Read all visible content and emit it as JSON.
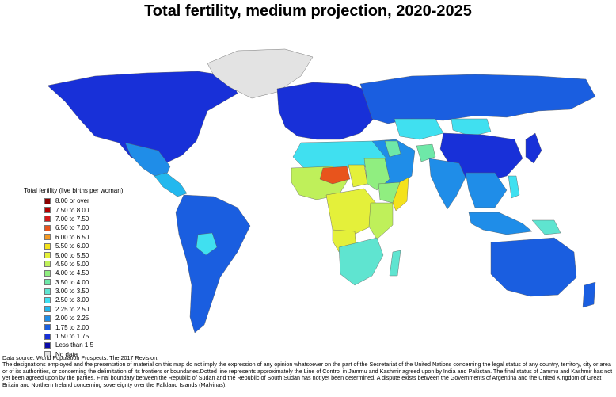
{
  "title": "Total fertility, medium projection, 2020-2025",
  "legend": {
    "title": "Total fertility (live births per woman)",
    "items": [
      {
        "label": "8.00 or over",
        "color": "#8b0000"
      },
      {
        "label": "7.50 to 8.00",
        "color": "#b30000"
      },
      {
        "label": "7.00 to 7.50",
        "color": "#d41a1a"
      },
      {
        "label": "6.50 to 7.00",
        "color": "#e8541c"
      },
      {
        "label": "6.00 to 6.50",
        "color": "#f59a23"
      },
      {
        "label": "5.50 to 6.00",
        "color": "#f4e21c"
      },
      {
        "label": "5.00 to 5.50",
        "color": "#e4f03a"
      },
      {
        "label": "4.50 to 5.00",
        "color": "#bff05a"
      },
      {
        "label": "4.00 to 4.50",
        "color": "#90ee80"
      },
      {
        "label": "3.50 to 4.00",
        "color": "#6ee8a8"
      },
      {
        "label": "3.00 to 3.50",
        "color": "#5fe4d0"
      },
      {
        "label": "2.50 to 3.00",
        "color": "#40e0f0"
      },
      {
        "label": "2.25 to 2.50",
        "color": "#22b8ee"
      },
      {
        "label": "2.00 to 2.25",
        "color": "#1f8de8"
      },
      {
        "label": "1.75 to 2.00",
        "color": "#1a5ee0"
      },
      {
        "label": "1.50 to 1.75",
        "color": "#1830d8"
      },
      {
        "label": "Less than 1.5",
        "color": "#0a0aa8"
      },
      {
        "label": "No data",
        "color": "#e3e3e3"
      }
    ]
  },
  "notes": {
    "source": "Data source: World Population Prospects: The 2017 Revision.",
    "disclaimer": "The designations employed and the presentation of material on this map do not imply the expression of any opinion whatsoever on the part of the Secretariat of the United Nations concerning the legal status of any country, territory, city or area or of its authorities, or concerning the delimitation of its frontiers or boundaries.Dotted line represents approximately the Line of Control in Jammu and Kashmir agreed upon by India and Pakistan. The final status of Jammu and Kashmir has not yet been agreed upon by the parties. Final boundary between the Republic of Sudan and the Republic of South Sudan has not yet been determined. A dispute exists between the Governments of Argentina and the United Kingdom of Great Britain and Northern Ireland concerning sovereignty over the Falkland Islands (Malvinas)."
  },
  "map_regions": [
    {
      "name": "north-america",
      "color": "#1830d8"
    },
    {
      "name": "greenland",
      "color": "#e3e3e3"
    },
    {
      "name": "mexico",
      "color": "#1f8de8"
    },
    {
      "name": "central-america",
      "color": "#22b8ee"
    },
    {
      "name": "south-america",
      "color": "#1a5ee0"
    },
    {
      "name": "bolivia",
      "color": "#40e0f0"
    },
    {
      "name": "europe",
      "color": "#1830d8"
    },
    {
      "name": "russia",
      "color": "#1a5ee0"
    },
    {
      "name": "kazakhstan",
      "color": "#40e0f0"
    },
    {
      "name": "mongolia",
      "color": "#40e0f0"
    },
    {
      "name": "china",
      "color": "#1830d8"
    },
    {
      "name": "middle-east",
      "color": "#1f8de8"
    },
    {
      "name": "iraq",
      "color": "#6ee8a8"
    },
    {
      "name": "afghanistan",
      "color": "#6ee8a8"
    },
    {
      "name": "south-asia",
      "color": "#1f8de8"
    },
    {
      "name": "southeast-asia",
      "color": "#1f8de8"
    },
    {
      "name": "north-africa",
      "color": "#40e0f0"
    },
    {
      "name": "west-africa",
      "color": "#bff05a"
    },
    {
      "name": "niger",
      "color": "#e8541c"
    },
    {
      "name": "chad",
      "color": "#e4f03a"
    },
    {
      "name": "sudan",
      "color": "#90ee80"
    },
    {
      "name": "horn-of-africa",
      "color": "#90ee80"
    },
    {
      "name": "somalia",
      "color": "#f4e21c"
    },
    {
      "name": "central-africa",
      "color": "#e4f03a"
    },
    {
      "name": "east-africa",
      "color": "#bff05a"
    },
    {
      "name": "angola",
      "color": "#e4f03a"
    },
    {
      "name": "southern-africa",
      "color": "#5fe4d0"
    },
    {
      "name": "madagascar",
      "color": "#5fe4d0"
    },
    {
      "name": "indonesia",
      "color": "#1f8de8"
    },
    {
      "name": "philippines",
      "color": "#40e0f0"
    },
    {
      "name": "png",
      "color": "#5fe4d0"
    },
    {
      "name": "japan",
      "color": "#1830d8"
    },
    {
      "name": "australia",
      "color": "#1a5ee0"
    },
    {
      "name": "new-zealand",
      "color": "#1a5ee0"
    }
  ]
}
